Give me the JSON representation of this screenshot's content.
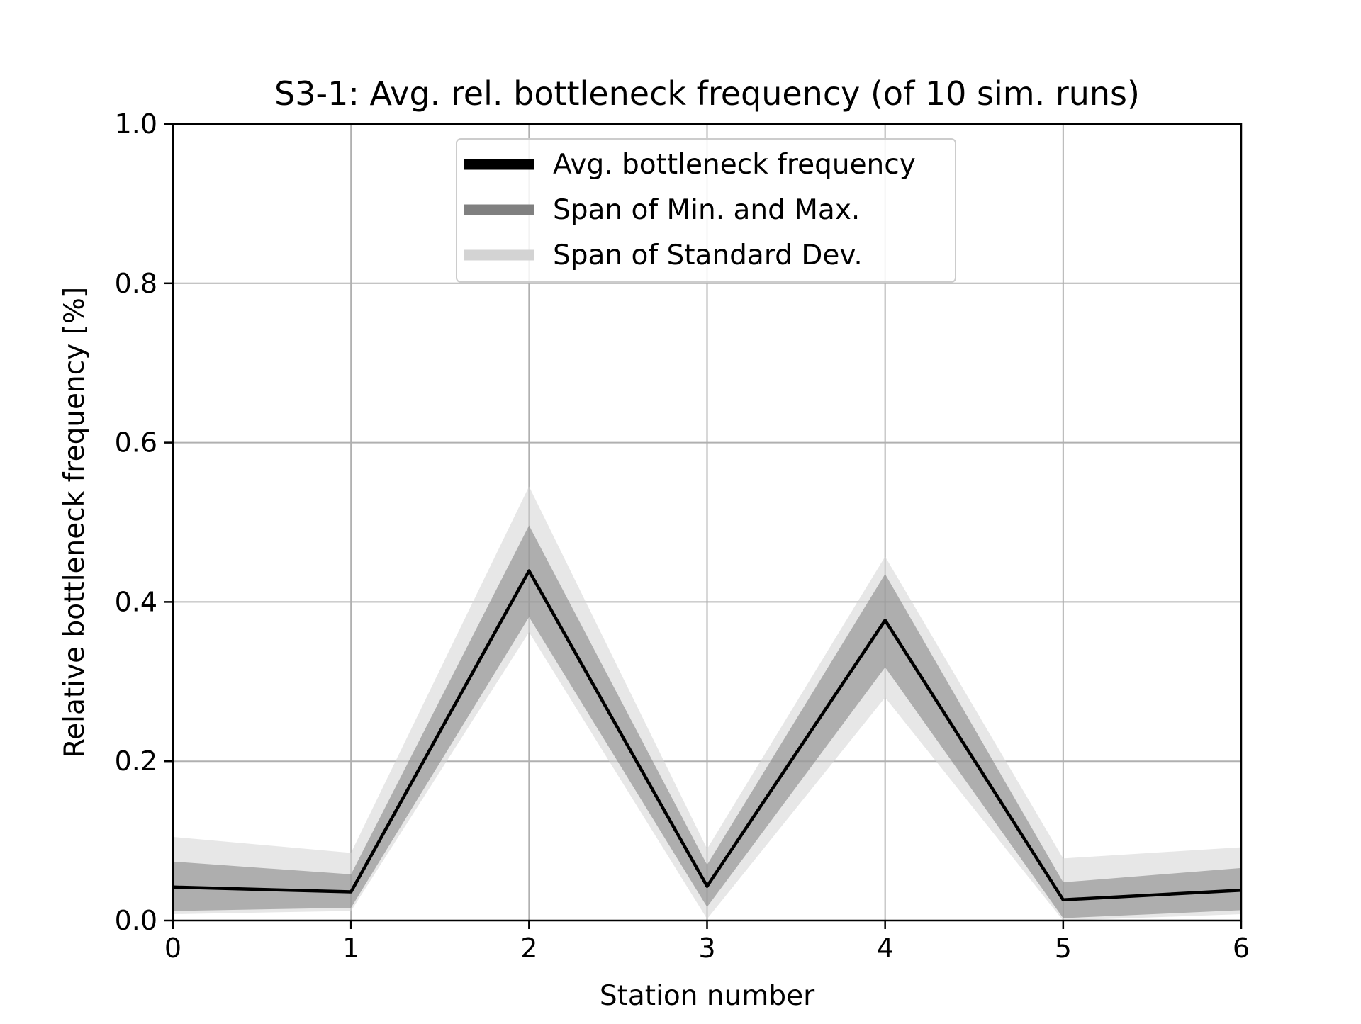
{
  "chart_data": {
    "type": "line",
    "title": "S3-1: Avg. rel. bottleneck frequency (of 10 sim. runs)",
    "xlabel": "Station number",
    "ylabel": "Relative bottleneck frequency [%]",
    "xlim": [
      0,
      6
    ],
    "ylim": [
      0,
      1.0
    ],
    "x": [
      0,
      1,
      2,
      3,
      4,
      5,
      6
    ],
    "xticks": [
      "0",
      "1",
      "2",
      "3",
      "4",
      "5",
      "6"
    ],
    "yticks": [
      "0.0",
      "0.2",
      "0.4",
      "0.6",
      "0.8",
      "1.0"
    ],
    "grid": true,
    "legend_position": "upper-center",
    "series": [
      {
        "name": "Avg. bottleneck frequency",
        "kind": "line",
        "color": "#000000",
        "values": [
          0.042,
          0.036,
          0.439,
          0.043,
          0.377,
          0.026,
          0.038
        ]
      },
      {
        "name": "Span of Min. and Max.",
        "kind": "band",
        "color": "#808080",
        "lower": [
          0.012,
          0.016,
          0.381,
          0.017,
          0.318,
          0.003,
          0.013
        ],
        "upper": [
          0.074,
          0.058,
          0.496,
          0.07,
          0.435,
          0.048,
          0.066
        ]
      },
      {
        "name": "Span of Standard Dev.",
        "kind": "band",
        "color": "#d3d3d3",
        "lower": [
          0.008,
          0.012,
          0.362,
          0.002,
          0.28,
          0.0,
          0.008
        ],
        "upper": [
          0.105,
          0.085,
          0.545,
          0.09,
          0.457,
          0.078,
          0.092
        ]
      }
    ]
  }
}
